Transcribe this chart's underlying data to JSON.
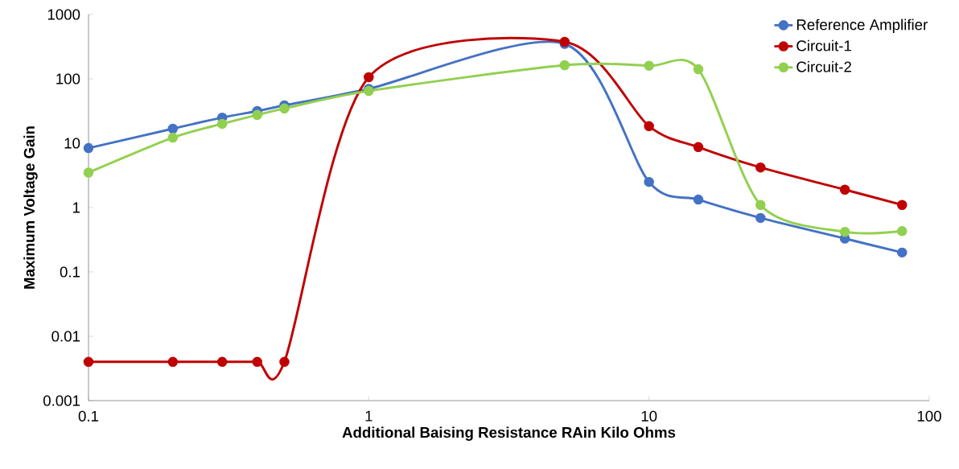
{
  "chart_data": {
    "type": "line",
    "xlabel": "Additional Baising Resistance RAin Kilo Ohms",
    "ylabel": "Maximum Voltage Gain",
    "log": "xy",
    "grid": false,
    "legend": "top right",
    "marker": "circle",
    "line_style": "solid",
    "xlim": [
      0.1,
      100
    ],
    "xticks": [
      0.1,
      1,
      10,
      100
    ],
    "ylim": [
      0.001,
      1000
    ],
    "yticks": [
      0.001,
      0.01,
      0.1,
      1,
      10,
      100,
      1000
    ],
    "x": [
      0.1,
      0.2,
      0.3,
      0.4,
      0.5,
      1,
      5,
      10,
      15,
      25,
      50,
      80
    ],
    "series": [
      {
        "name": "Reference Amplifier",
        "color": "#4472c4",
        "values": [
          8.4,
          16.8,
          25,
          31.6,
          38.7,
          70,
          350,
          2.5,
          1.33,
          0.69,
          0.33,
          0.2
        ]
      },
      {
        "name": "Circuit-1",
        "color": "#c00000",
        "values": [
          0.004,
          0.004,
          0.004,
          0.004,
          0.004,
          106,
          376,
          18.4,
          8.7,
          4.2,
          1.9,
          1.1
        ]
      },
      {
        "name": "Circuit-2",
        "color": "#92d050",
        "values": [
          3.5,
          12.2,
          20,
          27.5,
          34.6,
          65,
          163,
          160,
          141,
          1.1,
          0.42,
          0.43
        ]
      }
    ]
  }
}
